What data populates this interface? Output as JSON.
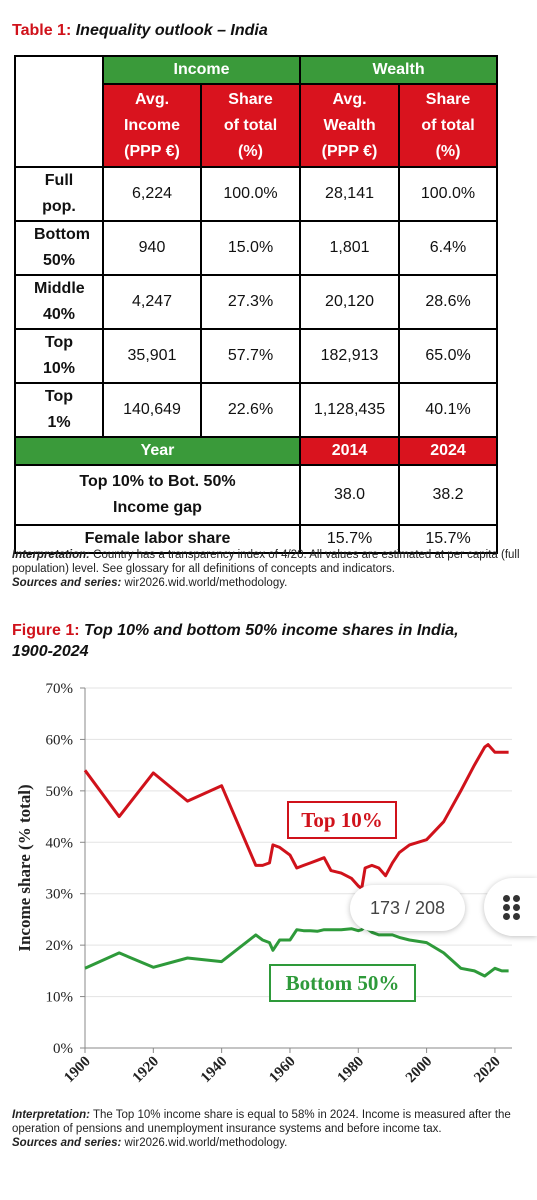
{
  "table": {
    "label": "Table 1:",
    "title": "Inequality outlook – India",
    "groups": [
      "Income",
      "Wealth"
    ],
    "columns": [
      "Avg. Income (PPP €)",
      "Share of total (%)",
      "Avg. Wealth (PPP €)",
      "Share of total (%)"
    ],
    "rows": [
      [
        "Full pop.",
        "6,224",
        "100.0%",
        "28,141",
        "100.0%"
      ],
      [
        "Bottom 50%",
        "940",
        "15.0%",
        "1,801",
        "6.4%"
      ],
      [
        "Middle 40%",
        "4,247",
        "27.3%",
        "20,120",
        "28.6%"
      ],
      [
        "Top 10%",
        "35,901",
        "57.7%",
        "182,913",
        "65.0%"
      ],
      [
        "Top 1%",
        "140,649",
        "22.6%",
        "1,128,435",
        "40.1%"
      ]
    ],
    "year_label": "Year",
    "years": [
      "2014",
      "2024"
    ],
    "indicators": [
      {
        "label": "Top 10% to Bot. 50% Income gap",
        "values": [
          "38.0",
          "38.2"
        ]
      },
      {
        "label": "Female labor share",
        "values": [
          "15.7%",
          "15.7%"
        ]
      }
    ],
    "notes": [
      {
        "label": "Interpretation:",
        "text": "Country has a transparency index of 4/20. All values are estimated at per capita (full population) level. See glossary for all definitions of concepts and indicators."
      },
      {
        "label": "Sources and series:",
        "text": "wir2026.wid.world/methodology."
      }
    ]
  },
  "chart_data": {
    "type": "line",
    "label": "Figure 1:",
    "title": "Top 10% and bottom 50% income shares in India, 1900-2024",
    "y_label": "Income share (% total)",
    "x": [
      1900,
      1910,
      1920,
      1930,
      1940,
      1950,
      1952,
      1954,
      1955,
      1957,
      1960,
      1962,
      1964,
      1966,
      1968,
      1970,
      1972,
      1975,
      1978,
      1980,
      1981,
      1982,
      1984,
      1986,
      1988,
      1990,
      1992,
      1995,
      2000,
      2005,
      2010,
      2014,
      2017,
      2018,
      2020,
      2022,
      2024
    ],
    "series": [
      {
        "name": "Top 10%",
        "color": "#d0121b",
        "values": [
          54,
          45,
          53.5,
          48,
          51,
          35.5,
          35.5,
          36,
          39.5,
          39,
          37.5,
          35,
          35.5,
          36,
          36.5,
          37,
          34.5,
          34,
          33,
          31.5,
          31,
          35,
          35.5,
          35,
          33.5,
          36,
          38,
          39.5,
          40.5,
          44,
          50,
          55,
          58.5,
          59,
          57.5,
          57.5,
          57.5
        ]
      },
      {
        "name": "Bottom 50%",
        "color": "#2e9a3a",
        "values": [
          15.5,
          18.5,
          15.7,
          17.5,
          16.8,
          22,
          21,
          20.5,
          19,
          21,
          21,
          23,
          22.8,
          22.8,
          22.7,
          23,
          23,
          23,
          23.2,
          22.8,
          23,
          23.5,
          22.5,
          22,
          22,
          22,
          21.5,
          21,
          20.5,
          18.5,
          15.5,
          15,
          14,
          14.5,
          15.5,
          15,
          15
        ]
      }
    ],
    "xlim": [
      1900,
      2025
    ],
    "xticks": [
      1900,
      1920,
      1940,
      1960,
      1980,
      2000,
      2020
    ],
    "ylim": [
      0,
      70
    ],
    "yticks": [
      {
        "value": 0,
        "label": "0%"
      },
      {
        "value": 10,
        "label": "10%"
      },
      {
        "value": 20,
        "label": "20%"
      },
      {
        "value": 30,
        "label": "30%"
      },
      {
        "value": 40,
        "label": "40%"
      },
      {
        "value": 50,
        "label": "50%"
      },
      {
        "value": 60,
        "label": "60%"
      },
      {
        "value": 70,
        "label": "70%"
      }
    ],
    "grid": true
  },
  "figure_notes": [
    {
      "label": "Interpretation:",
      "text": "The Top 10% income share is equal to 58% in 2024. Income is measured after the operation of pensions and unemployment insurance systems and before income tax."
    },
    {
      "label": "Sources and series:",
      "text": "wir2026.wid.world/methodology."
    }
  ],
  "page_indicator": "173 / 208"
}
